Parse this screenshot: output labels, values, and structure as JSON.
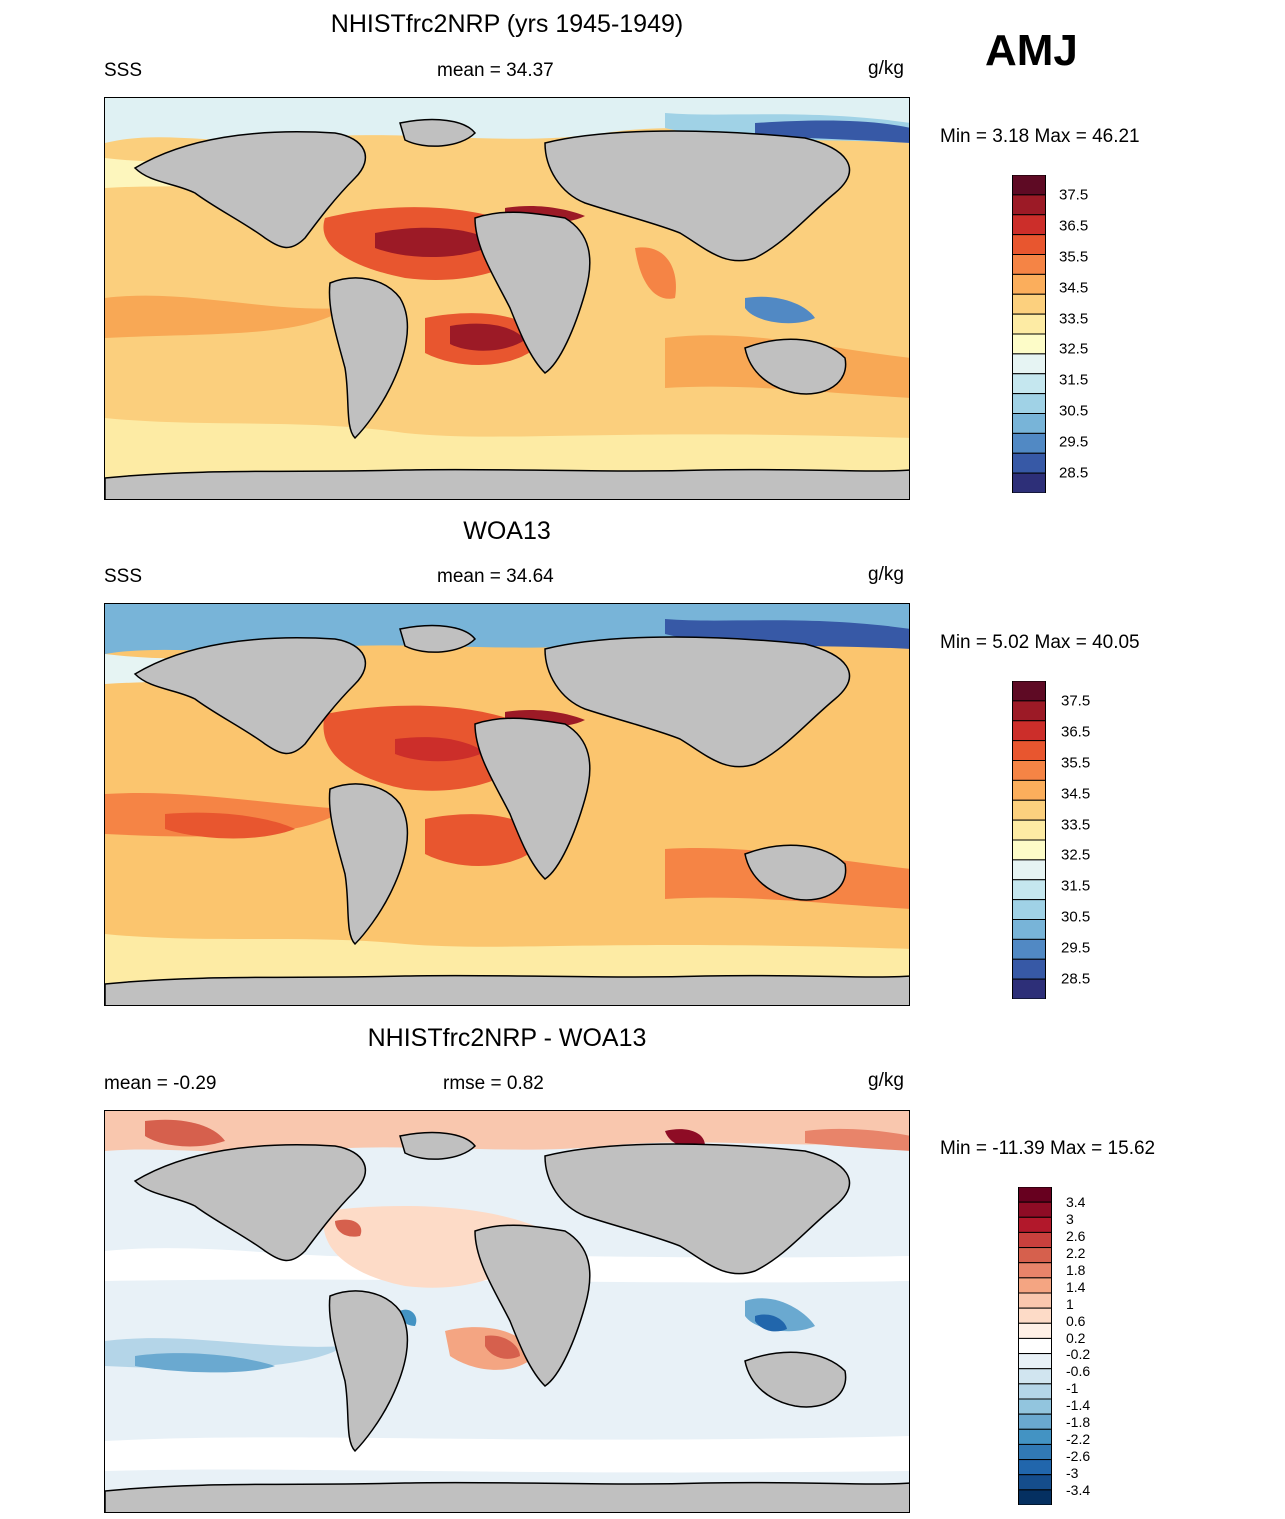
{
  "season": "AMJ",
  "panels": [
    {
      "title": "NHISTfrc2NRP (yrs 1945-1949)",
      "left_label": "SSS",
      "center_label": "mean =  34.37",
      "units": "g/kg",
      "minmax": "Min =   3.18 Max =  46.21",
      "palette": "salinity"
    },
    {
      "title": "WOA13",
      "left_label": "SSS",
      "center_label": "mean =  34.64",
      "units": "g/kg",
      "minmax": "Min =   5.02 Max =  40.05",
      "palette": "salinity"
    },
    {
      "title": "NHISTfrc2NRP - WOA13",
      "left_label": "mean =  -0.29",
      "center_label": "rmse =   0.82",
      "units": "g/kg",
      "minmax": "Min = -11.39 Max =  15.62",
      "palette": "difference"
    }
  ],
  "colorbars": {
    "salinity": {
      "colors": [
        "#5e0a24",
        "#9c1a26",
        "#cc2e2a",
        "#e8562f",
        "#f58445",
        "#fbae5c",
        "#fcd07e",
        "#fdeba4",
        "#fdfcc8",
        "#e6f4f3",
        "#c5e7ef",
        "#a0d2e6",
        "#78b4d8",
        "#5189c4",
        "#3759a6",
        "#2d2f78"
      ],
      "labels": [
        "37.5",
        "36.5",
        "35.5",
        "34.5",
        "33.5",
        "32.5",
        "31.5",
        "30.5",
        "29.5",
        "28.5"
      ]
    },
    "difference": {
      "colors": [
        "#67001f",
        "#8e0c25",
        "#b2182b",
        "#c9403d",
        "#d6604d",
        "#e8846a",
        "#f4a582",
        "#f9c7ae",
        "#fddbc7",
        "#fff0e6",
        "#ffffff",
        "#e8f1f7",
        "#d1e5f0",
        "#b4d5e8",
        "#92c5de",
        "#6aa9d0",
        "#4393c3",
        "#3179b4",
        "#2166ac",
        "#154d8c",
        "#053061"
      ],
      "labels": [
        "3.4",
        "3",
        "2.6",
        "2.2",
        "1.8",
        "1.4",
        "1",
        "0.6",
        "0.2",
        "-0.2",
        "-0.6",
        "-1",
        "-1.4",
        "-1.8",
        "-2.2",
        "-2.6",
        "-3",
        "-3.4"
      ]
    }
  }
}
